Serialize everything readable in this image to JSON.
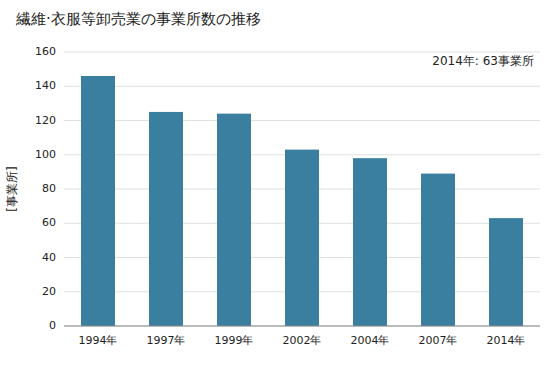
{
  "chart_data": {
    "type": "bar",
    "title": "繊維·衣服等卸売業の事業所数の推移",
    "ylabel": "[事業所]",
    "annotation": "2014年: 63事業所",
    "categories": [
      "1994年",
      "1997年",
      "1999年",
      "2002年",
      "2004年",
      "2007年",
      "2014年"
    ],
    "values": [
      146,
      125,
      124,
      103,
      98,
      89,
      63
    ],
    "color": "#3a7fa0",
    "ylim": [
      0,
      160
    ],
    "yticks": [
      0,
      20,
      40,
      60,
      80,
      100,
      120,
      140,
      160
    ],
    "grid": true
  }
}
